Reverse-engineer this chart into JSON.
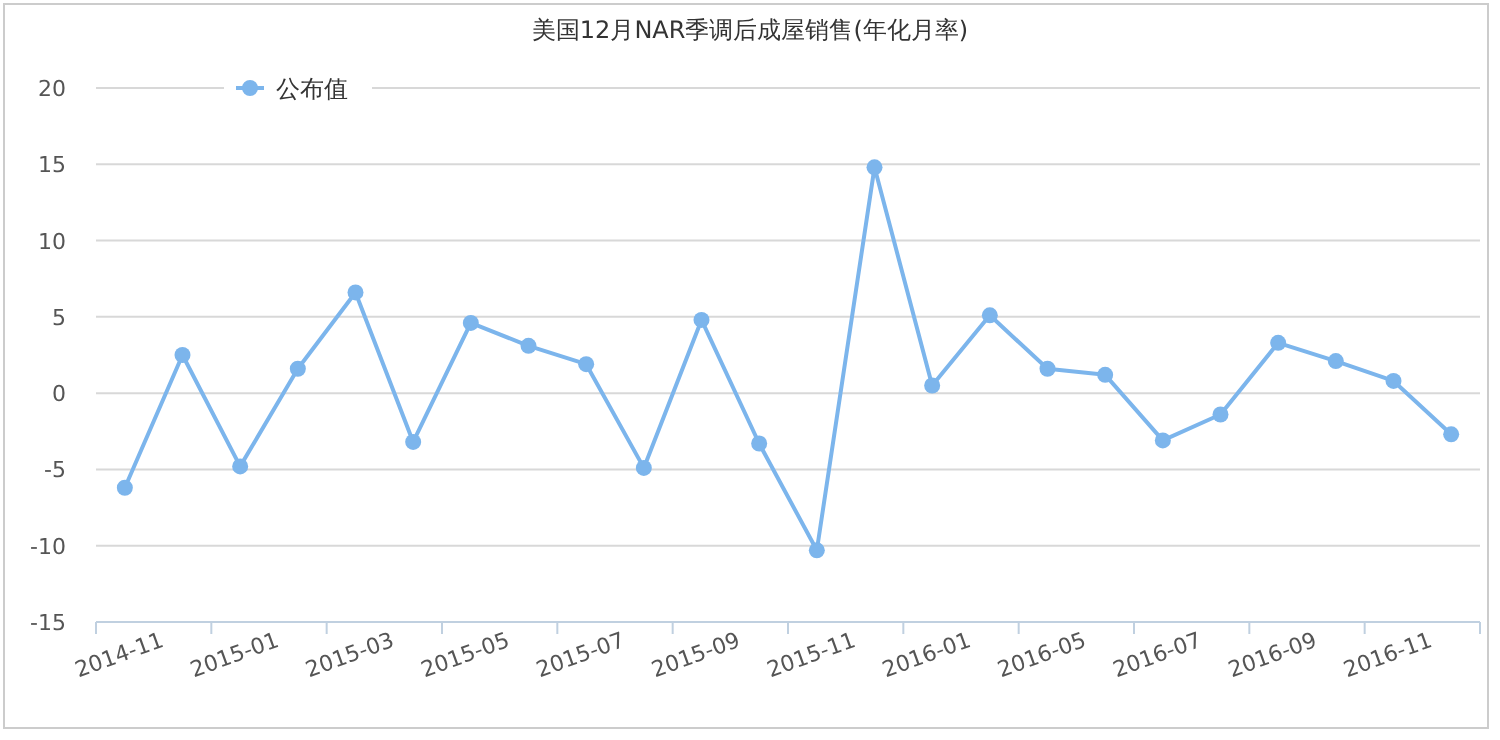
{
  "chart_data": {
    "type": "line",
    "title": "美国12月NAR季调后成屋销售(年化月率)",
    "categories": [
      "2014-11",
      null,
      "2015-01",
      null,
      "2015-03",
      null,
      "2015-05",
      null,
      "2015-07",
      null,
      "2015-09",
      null,
      "2015-11",
      null,
      "2016-01",
      null,
      "2016-05",
      null,
      "2016-07",
      null,
      "2016-09",
      null,
      "2016-11",
      null
    ],
    "series": [
      {
        "name": "公布值",
        "color": "#7cb5ec",
        "values": [
          -6.2,
          2.5,
          -4.8,
          1.6,
          6.6,
          -3.2,
          4.6,
          3.1,
          1.9,
          -4.9,
          4.8,
          -3.3,
          -10.3,
          14.8,
          0.5,
          5.1,
          1.6,
          1.2,
          -3.1,
          -1.4,
          3.3,
          2.1,
          0.8,
          -2.7
        ]
      }
    ],
    "ylim": [
      -15,
      20
    ],
    "yticks": [
      -15,
      -10,
      -5,
      0,
      5,
      10,
      15,
      20
    ],
    "grid": "y",
    "legend": "top left",
    "marker": "circle",
    "line_style": "solid"
  }
}
